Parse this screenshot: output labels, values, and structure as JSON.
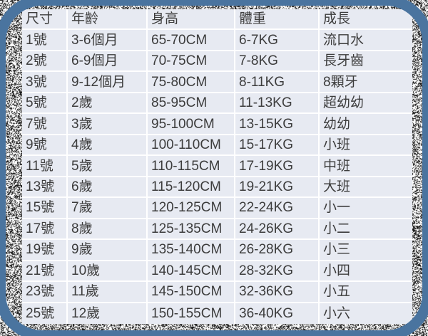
{
  "chart_data": {
    "type": "table",
    "title": "",
    "columns": [
      "尺寸",
      "年齡",
      "身高",
      "體重",
      "成長"
    ],
    "rows": [
      [
        "1號",
        "3-6個月",
        "65-70CM",
        "6-7KG",
        "流口水"
      ],
      [
        "2號",
        "6-9個月",
        "70-75CM",
        "7-8KG",
        "長牙齒"
      ],
      [
        "3號",
        "9-12個月",
        "75-80CM",
        "8-11KG",
        "8顆牙"
      ],
      [
        "5號",
        "2歲",
        "85-95CM",
        "11-13KG",
        "超幼幼"
      ],
      [
        "7號",
        "3歲",
        "95-100CM",
        "13-15KG",
        "幼幼"
      ],
      [
        "9號",
        "4歲",
        "100-110CM",
        "15-17KG",
        "小班"
      ],
      [
        "11號",
        "5歲",
        "110-115CM",
        "17-19KG",
        "中班"
      ],
      [
        "13號",
        "6歲",
        "115-120CM",
        "19-21KG",
        "大班"
      ],
      [
        "15號",
        "7歲",
        "120-125CM",
        "22-24KG",
        "小一"
      ],
      [
        "17號",
        "8歲",
        "125-135CM",
        "24-26KG",
        "小二"
      ],
      [
        "19號",
        "9歲",
        "135-140CM",
        "26-28KG",
        "小三"
      ],
      [
        "21號",
        "10歲",
        "140-145CM",
        "28-32KG",
        "小四"
      ],
      [
        "23號",
        "11歲",
        "145-150CM",
        "32-36KG",
        "小五"
      ],
      [
        "25號",
        "12歲",
        "150-155CM",
        "36-40KG",
        "小六"
      ]
    ]
  },
  "colors": {
    "frame_blue": "#4a749f",
    "cell_background": "#e7eaf2",
    "gridline": "#ffffff",
    "text": "#3c3c3c",
    "noise_black": "#141414",
    "background": "#ffffff"
  }
}
